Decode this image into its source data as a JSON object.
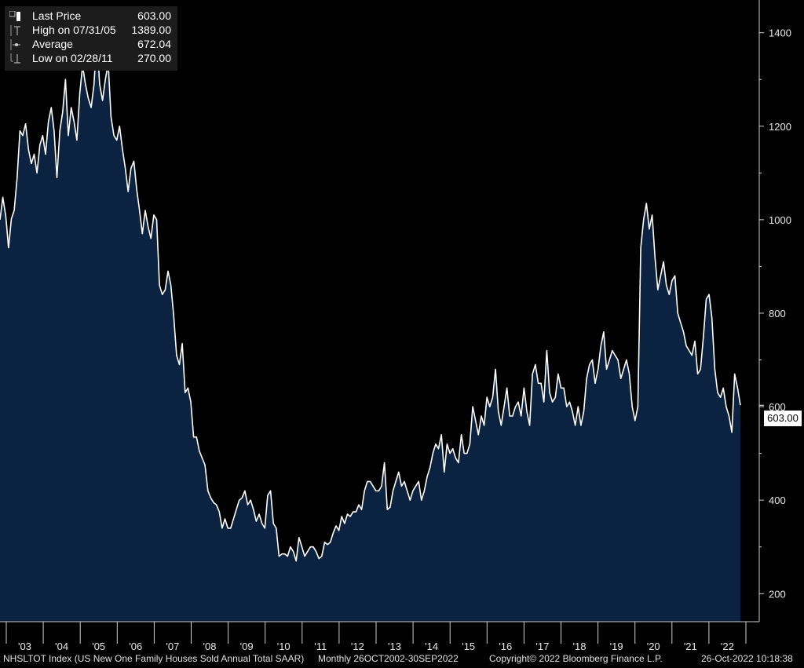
{
  "chart_data": {
    "type": "area",
    "series": [
      {
        "name": "NHSLTOT Index",
        "values": [
          1000,
          1048,
          1008,
          940,
          1002,
          1020,
          1090,
          1190,
          1180,
          1205,
          1150,
          1120,
          1140,
          1100,
          1160,
          1180,
          1140,
          1210,
          1240,
          1190,
          1090,
          1190,
          1230,
          1300,
          1180,
          1240,
          1210,
          1170,
          1270,
          1330,
          1290,
          1260,
          1240,
          1289,
          1389,
          1290,
          1255,
          1300,
          1335,
          1220,
          1180,
          1170,
          1200,
          1150,
          1110,
          1060,
          1110,
          1125,
          1065,
          1020,
          970,
          1020,
          985,
          960,
          1010,
          1000,
          860,
          840,
          850,
          890,
          860,
          795,
          710,
          690,
          735,
          630,
          640,
          610,
          535,
          535,
          505,
          490,
          475,
          420,
          405,
          395,
          390,
          375,
          340,
          360,
          340,
          340,
          360,
          380,
          400,
          405,
          420,
          390,
          400,
          380,
          355,
          370,
          350,
          340,
          410,
          420,
          350,
          340,
          280,
          285,
          285,
          280,
          300,
          290,
          270,
          320,
          300,
          280,
          290,
          300,
          300,
          290,
          275,
          280,
          310,
          305,
          310,
          330,
          345,
          335,
          365,
          350,
          370,
          365,
          375,
          375,
          390,
          380,
          420,
          440,
          440,
          430,
          420,
          420,
          430,
          480,
          380,
          385,
          420,
          440,
          460,
          430,
          440,
          420,
          400,
          420,
          430,
          440,
          400,
          420,
          450,
          470,
          500,
          520,
          510,
          540,
          460,
          520,
          500,
          510,
          490,
          480,
          540,
          500,
          500,
          520,
          600,
          570,
          540,
          580,
          560,
          620,
          600,
          620,
          680,
          590,
          560,
          600,
          640,
          580,
          580,
          600,
          610,
          580,
          640,
          590,
          560,
          670,
          690,
          650,
          650,
          610,
          720,
          630,
          610,
          620,
          670,
          640,
          640,
          600,
          610,
          590,
          560,
          600,
          560,
          590,
          660,
          690,
          700,
          650,
          680,
          730,
          760,
          680,
          700,
          720,
          710,
          700,
          660,
          680,
          700,
          670,
          600,
          570,
          600,
          940,
          1000,
          1035,
          980,
          1010,
          920,
          850,
          880,
          910,
          860,
          840,
          870,
          880,
          800,
          780,
          760,
          730,
          720,
          710,
          740,
          670,
          680,
          750,
          830,
          840,
          790,
          680,
          630,
          620,
          640,
          600,
          580,
          545,
          670,
          640,
          603
        ]
      }
    ],
    "x_labels": [
      "'03",
      "'04",
      "'05",
      "'06",
      "'07",
      "'08",
      "'09",
      "'10",
      "'11",
      "'12",
      "'13",
      "'14",
      "'15",
      "'16",
      "'17",
      "'18",
      "'19",
      "'20",
      "'21",
      "'22"
    ],
    "y_ticks": [
      200,
      400,
      600,
      800,
      1000,
      1200,
      1400
    ],
    "ylim": [
      140,
      1470
    ],
    "grid": false,
    "legend_position": "top-left",
    "last_value_label": "603.00",
    "colors": {
      "background": "#000000",
      "area_fill": "#0b2240",
      "line": "#ffffff",
      "text": "#e8e8e8",
      "legend_bg": "#1c1c1c"
    }
  },
  "legend": {
    "items": [
      {
        "label": "Last Price",
        "value": "603.00"
      },
      {
        "label": "High on 07/31/05",
        "value": "1389.00"
      },
      {
        "label": "Average",
        "value": "672.04"
      },
      {
        "label": "Low on 02/28/11",
        "value": "270.00"
      }
    ]
  },
  "footer": {
    "index_label": "NHSLTOT Index (US New One Family Houses Sold Annual Total SAAR)",
    "range": "Monthly 26OCT2002-30SEP2022",
    "copyright": "Copyright© 2022 Bloomberg Finance L.P.",
    "timestamp": "26-Oct-2022 10:18:38"
  }
}
